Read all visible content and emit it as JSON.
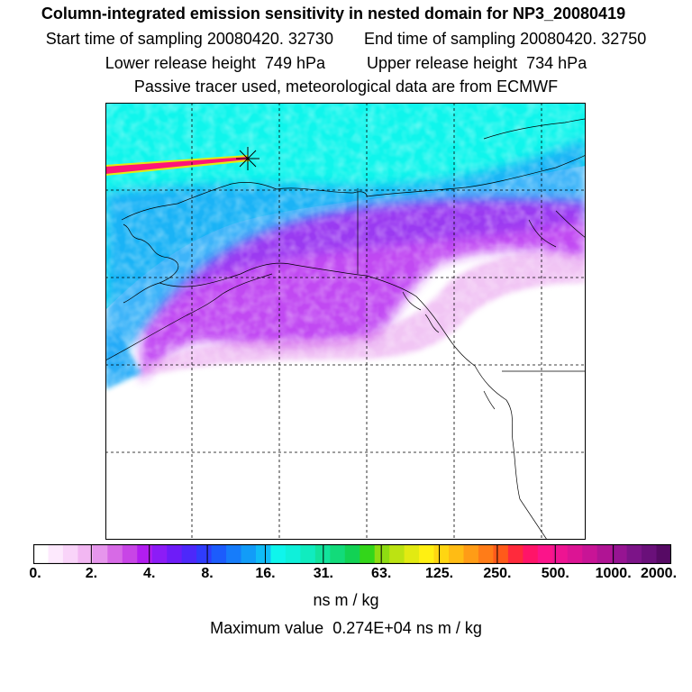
{
  "title": "Column-integrated emission sensitivity in nested domain for NP3_20080419",
  "sampling": {
    "start_label": "Start time of sampling",
    "start_value": "20080420. 32730",
    "end_label": "End time of sampling",
    "end_value": "20080420. 32750"
  },
  "release": {
    "lower_label": "Lower release height",
    "lower_value": "749 hPa",
    "upper_label": "Upper release height",
    "upper_value": "734 hPa"
  },
  "tracer_note": "Passive tracer used, meteorological data are from ECMWF",
  "colorbar": {
    "ticks": [
      "0.",
      "2.",
      "4.",
      "8.",
      "16.",
      "31.",
      "63.",
      "125.",
      "250.",
      "500.",
      "1000.",
      "2000."
    ],
    "colors": [
      "#ffffff",
      "#fde9fd",
      "#f9d4f9",
      "#f2b7f2",
      "#e696ec",
      "#d76ae6",
      "#c845e6",
      "#b21df0",
      "#8c1cf6",
      "#6e1cf8",
      "#4d28fa",
      "#2f3cfc",
      "#1c5cfc",
      "#167cfa",
      "#129cf8",
      "#10bcf7",
      "#0ff5ec",
      "#0ff0da",
      "#10ecbf",
      "#12e39c",
      "#12db7a",
      "#12d254",
      "#33d61a",
      "#8edc12",
      "#bce312",
      "#e2ea12",
      "#fff012",
      "#ffd612",
      "#ffbc14",
      "#ff9c16",
      "#ff7c18",
      "#ff5a1a",
      "#ff2a3c",
      "#ff1468",
      "#fb148a",
      "#ee1492",
      "#dc1494",
      "#c81496",
      "#b01494",
      "#961492",
      "#7c1488",
      "#6a107a",
      "#560a64"
    ],
    "units": "ns m / kg"
  },
  "max_value": {
    "label": "Maximum value",
    "value": "0.274E+04",
    "units": "ns m / kg"
  },
  "map": {
    "field_colors": {
      "high": "#0ff5ec",
      "mid": "#1aa8f8",
      "low": "#b21df0",
      "faint": "#e696ec",
      "plume": "#ff1478",
      "plume_edge": "#e2ea12"
    }
  }
}
